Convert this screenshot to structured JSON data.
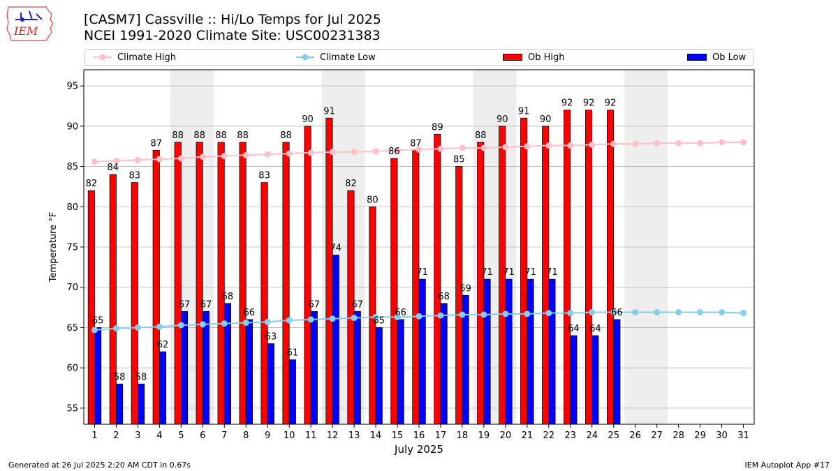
{
  "logo": {
    "text": "IEM"
  },
  "header": {
    "title_line1": "[CASM7] Cassville :: Hi/Lo Temps for Jul 2025",
    "title_line2": "NCEI 1991-2020 Climate Site: USC00231383"
  },
  "footer": {
    "generated": "Generated at 26 Jul 2025 2:20 AM CDT in 0.67s",
    "app": "IEM Autoplot App #17"
  },
  "colors": {
    "ob_high": "#ff0000",
    "ob_low": "#0000ff",
    "climate_high": "#ffc0cb",
    "climate_low": "#87ceeb",
    "weekend_shade": "#eeeeee",
    "grid": "#b0b0b0"
  },
  "chart_data": {
    "type": "bar",
    "xlabel": "July 2025",
    "ylabel": "Temperature °F",
    "ylim": [
      53,
      97
    ],
    "yticks": [
      55,
      60,
      65,
      70,
      75,
      80,
      85,
      90,
      95
    ],
    "grid": "horizontal",
    "legend_placement": "top",
    "categories": [
      "1",
      "2",
      "3",
      "4",
      "5",
      "6",
      "7",
      "8",
      "9",
      "10",
      "11",
      "12",
      "13",
      "14",
      "15",
      "16",
      "17",
      "18",
      "19",
      "20",
      "21",
      "22",
      "23",
      "24",
      "25",
      "26",
      "27",
      "28",
      "29",
      "30",
      "31"
    ],
    "shaded_weekends": [
      [
        5,
        6
      ],
      [
        12,
        13
      ],
      [
        19,
        20
      ],
      [
        26,
        27
      ]
    ],
    "series": [
      {
        "name": "Climate High",
        "kind": "line",
        "values": [
          85.6,
          85.7,
          85.8,
          85.9,
          86.0,
          86.2,
          86.3,
          86.4,
          86.5,
          86.6,
          86.7,
          86.8,
          86.8,
          86.9,
          87.0,
          87.1,
          87.2,
          87.3,
          87.3,
          87.4,
          87.5,
          87.6,
          87.6,
          87.7,
          87.8,
          87.8,
          87.9,
          87.9,
          87.9,
          88.0,
          88.0
        ]
      },
      {
        "name": "Climate Low",
        "kind": "line",
        "values": [
          64.7,
          64.9,
          65.0,
          65.1,
          65.3,
          65.4,
          65.5,
          65.6,
          65.7,
          65.9,
          66.0,
          66.1,
          66.2,
          66.3,
          66.3,
          66.4,
          66.5,
          66.6,
          66.6,
          66.7,
          66.7,
          66.8,
          66.8,
          66.9,
          66.9,
          66.9,
          66.9,
          66.9,
          66.9,
          66.9,
          66.8
        ]
      },
      {
        "name": "Ob High",
        "kind": "bar",
        "values": [
          82,
          84,
          83,
          87,
          88,
          88,
          88,
          88,
          83,
          88,
          90,
          91,
          82,
          80,
          86,
          87,
          89,
          85,
          88,
          90,
          91,
          90,
          92,
          92,
          92,
          null,
          null,
          null,
          null,
          null,
          null
        ]
      },
      {
        "name": "Ob Low",
        "kind": "bar",
        "values": [
          65,
          58,
          58,
          62,
          67,
          67,
          68,
          66,
          63,
          61,
          67,
          74,
          67,
          65,
          66,
          71,
          68,
          69,
          71,
          71,
          71,
          71,
          64,
          64,
          66,
          null,
          null,
          null,
          null,
          null,
          null
        ]
      }
    ]
  }
}
